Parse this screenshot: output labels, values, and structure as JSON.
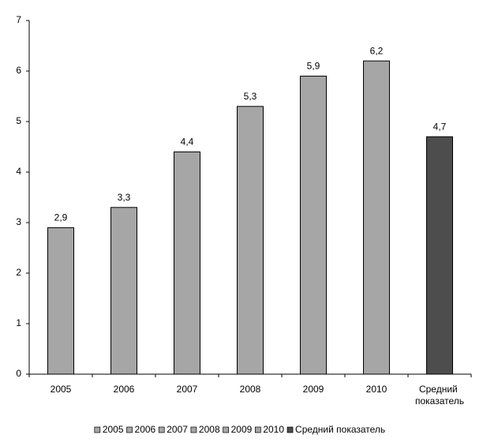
{
  "chart_data": {
    "type": "bar",
    "categories": [
      "2005",
      "2006",
      "2007",
      "2008",
      "2009",
      "2010",
      "Средний показатель"
    ],
    "values": [
      2.9,
      3.3,
      4.4,
      5.3,
      5.9,
      6.2,
      4.7
    ],
    "value_labels": [
      "2,9",
      "3,3",
      "4,4",
      "5,3",
      "5,9",
      "6,2",
      "4,7"
    ],
    "colors": [
      "#a6a6a6",
      "#a6a6a6",
      "#a6a6a6",
      "#a6a6a6",
      "#a6a6a6",
      "#a6a6a6",
      "#4d4d4d"
    ],
    "ylim": [
      0,
      7
    ],
    "yticks": [
      0,
      1,
      2,
      3,
      4,
      5,
      6,
      7
    ],
    "grid": false,
    "legend": "bottom"
  }
}
